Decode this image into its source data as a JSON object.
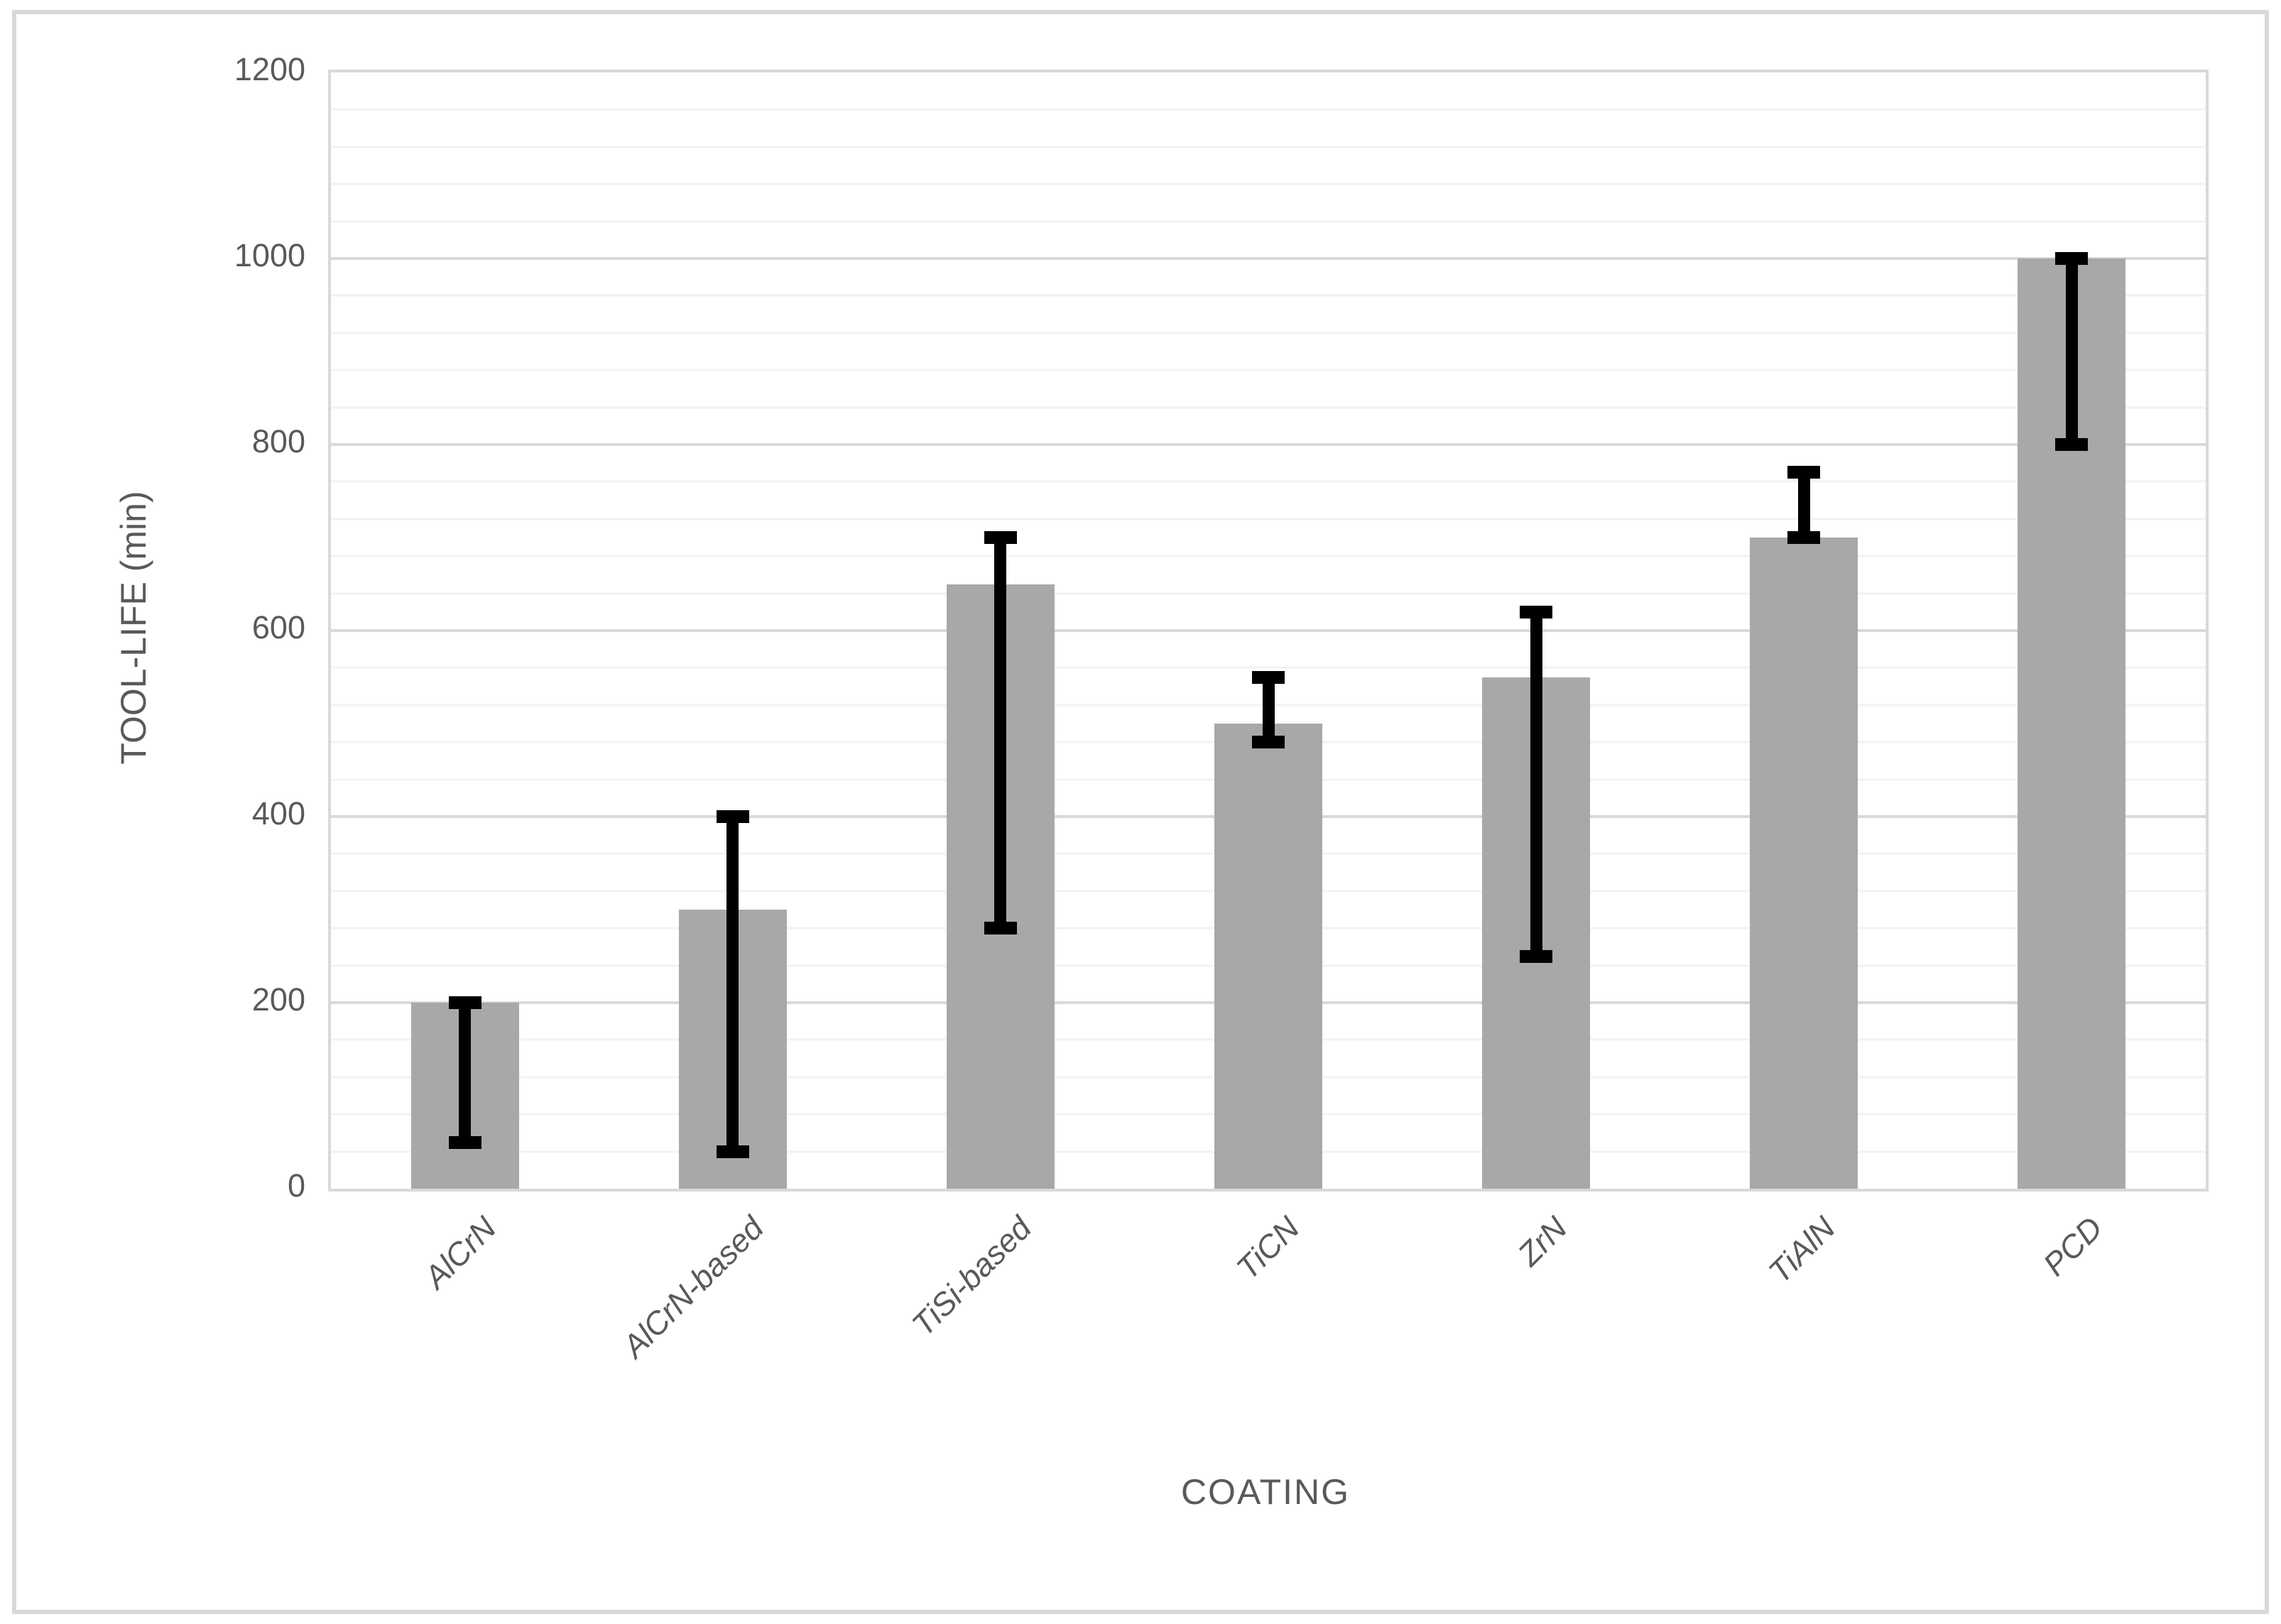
{
  "chart_data": {
    "type": "bar",
    "title": "",
    "categories": [
      "AlCrN",
      "AlCrN-based",
      "TiSi-based",
      "TiCN",
      "ZrN",
      "TiAlN",
      "PCD"
    ],
    "values": [
      200,
      300,
      650,
      500,
      550,
      700,
      1000
    ],
    "error_ranges": [
      [
        50,
        200
      ],
      [
        40,
        400
      ],
      [
        280,
        700
      ],
      [
        480,
        550
      ],
      [
        250,
        620
      ],
      [
        700,
        770
      ],
      [
        800,
        1000
      ]
    ],
    "xlabel": "COATING",
    "ylabel": "TOOL-LIFE (min)",
    "ylim": [
      0,
      1200
    ],
    "y_major_ticks": [
      0,
      200,
      400,
      600,
      800,
      1000,
      1200
    ],
    "y_minor_unit": 40,
    "grid": "on",
    "legend": "none",
    "bar_style": "single-series gray bars with black min-max error bars"
  },
  "colors": {
    "bar_fill": "#a8a8a8",
    "error_bar": "#000000",
    "gridline_major": "#d9d9d9",
    "gridline_minor": "#f2f2f2",
    "axis_line": "#d9d9d9",
    "frame_border": "#d9d9d9",
    "text": "#595959",
    "background": "#ffffff"
  }
}
